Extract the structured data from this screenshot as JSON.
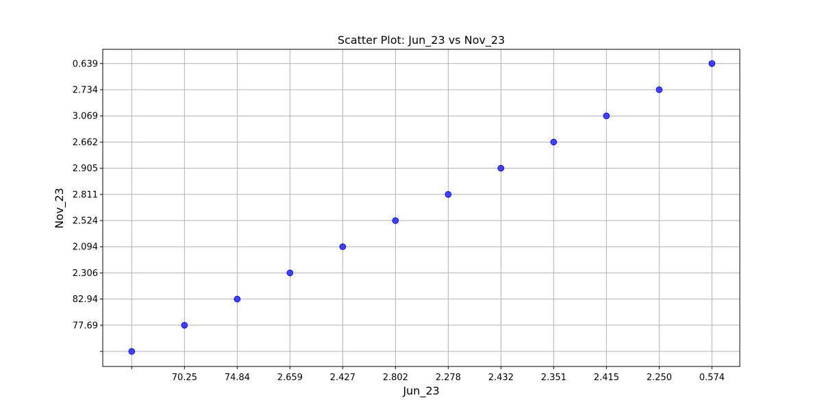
{
  "chart_data": {
    "type": "scatter",
    "title": "Scatter Plot: Jun_23 vs Nov_23",
    "xlabel": "Jun_23",
    "ylabel": "Nov_23",
    "x_categories": [
      "",
      "70.25",
      "74.84",
      "2.659",
      "2.427",
      "2.802",
      "2.278",
      "2.432",
      "2.351",
      "2.415",
      "2.250",
      "0.574"
    ],
    "y_categories": [
      "",
      "77.69",
      "82.94",
      "2.306",
      "2.094",
      "2.524",
      "2.811",
      "2.905",
      "2.662",
      "3.069",
      "2.734",
      "0.639"
    ],
    "points": [
      {
        "x": "",
        "y": ""
      },
      {
        "x": "70.25",
        "y": "77.69"
      },
      {
        "x": "74.84",
        "y": "82.94"
      },
      {
        "x": "2.659",
        "y": "2.306"
      },
      {
        "x": "2.427",
        "y": "2.094"
      },
      {
        "x": "2.802",
        "y": "2.524"
      },
      {
        "x": "2.278",
        "y": "2.811"
      },
      {
        "x": "2.432",
        "y": "2.905"
      },
      {
        "x": "2.351",
        "y": "2.662"
      },
      {
        "x": "2.415",
        "y": "3.069"
      },
      {
        "x": "2.250",
        "y": "2.734"
      },
      {
        "x": "0.574",
        "y": "0.639"
      }
    ],
    "grid": true,
    "marker_color": "#0000ff",
    "grid_color": "#b0b0b0"
  }
}
